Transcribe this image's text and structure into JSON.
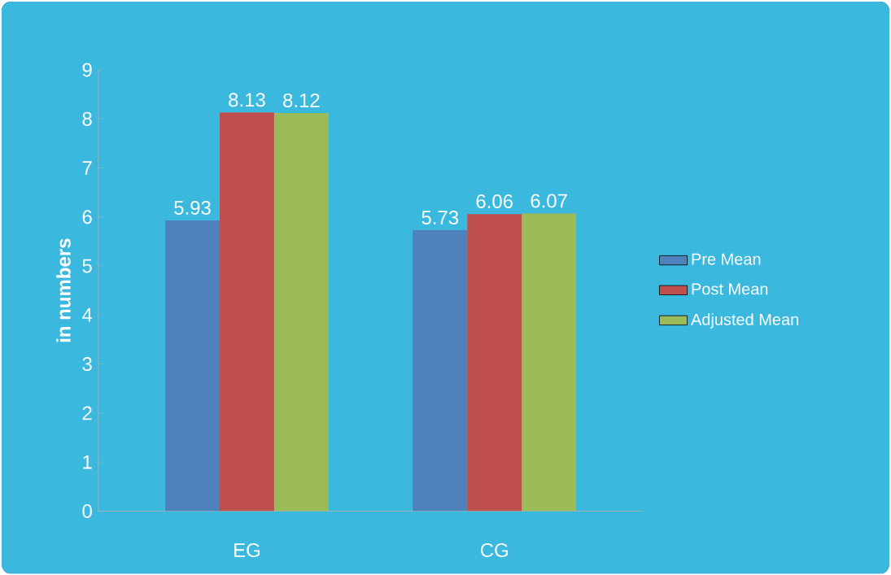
{
  "chart_data": {
    "type": "bar",
    "ylabel": "in numbers",
    "categories": [
      "EG",
      "CG"
    ],
    "series": [
      {
        "name": "Pre Mean",
        "color": "#4f81bd",
        "values": [
          5.93,
          5.73
        ]
      },
      {
        "name": "Post Mean",
        "color": "#c0504d",
        "values": [
          8.13,
          6.06
        ]
      },
      {
        "name": "Adjusted Mean",
        "color": "#9bbb59",
        "values": [
          8.12,
          6.07
        ]
      }
    ],
    "ylim": [
      0,
      9
    ],
    "yticks": [
      0,
      1,
      2,
      3,
      4,
      5,
      6,
      7,
      8,
      9
    ],
    "data_labels": true,
    "legend": "right",
    "grid": false
  }
}
